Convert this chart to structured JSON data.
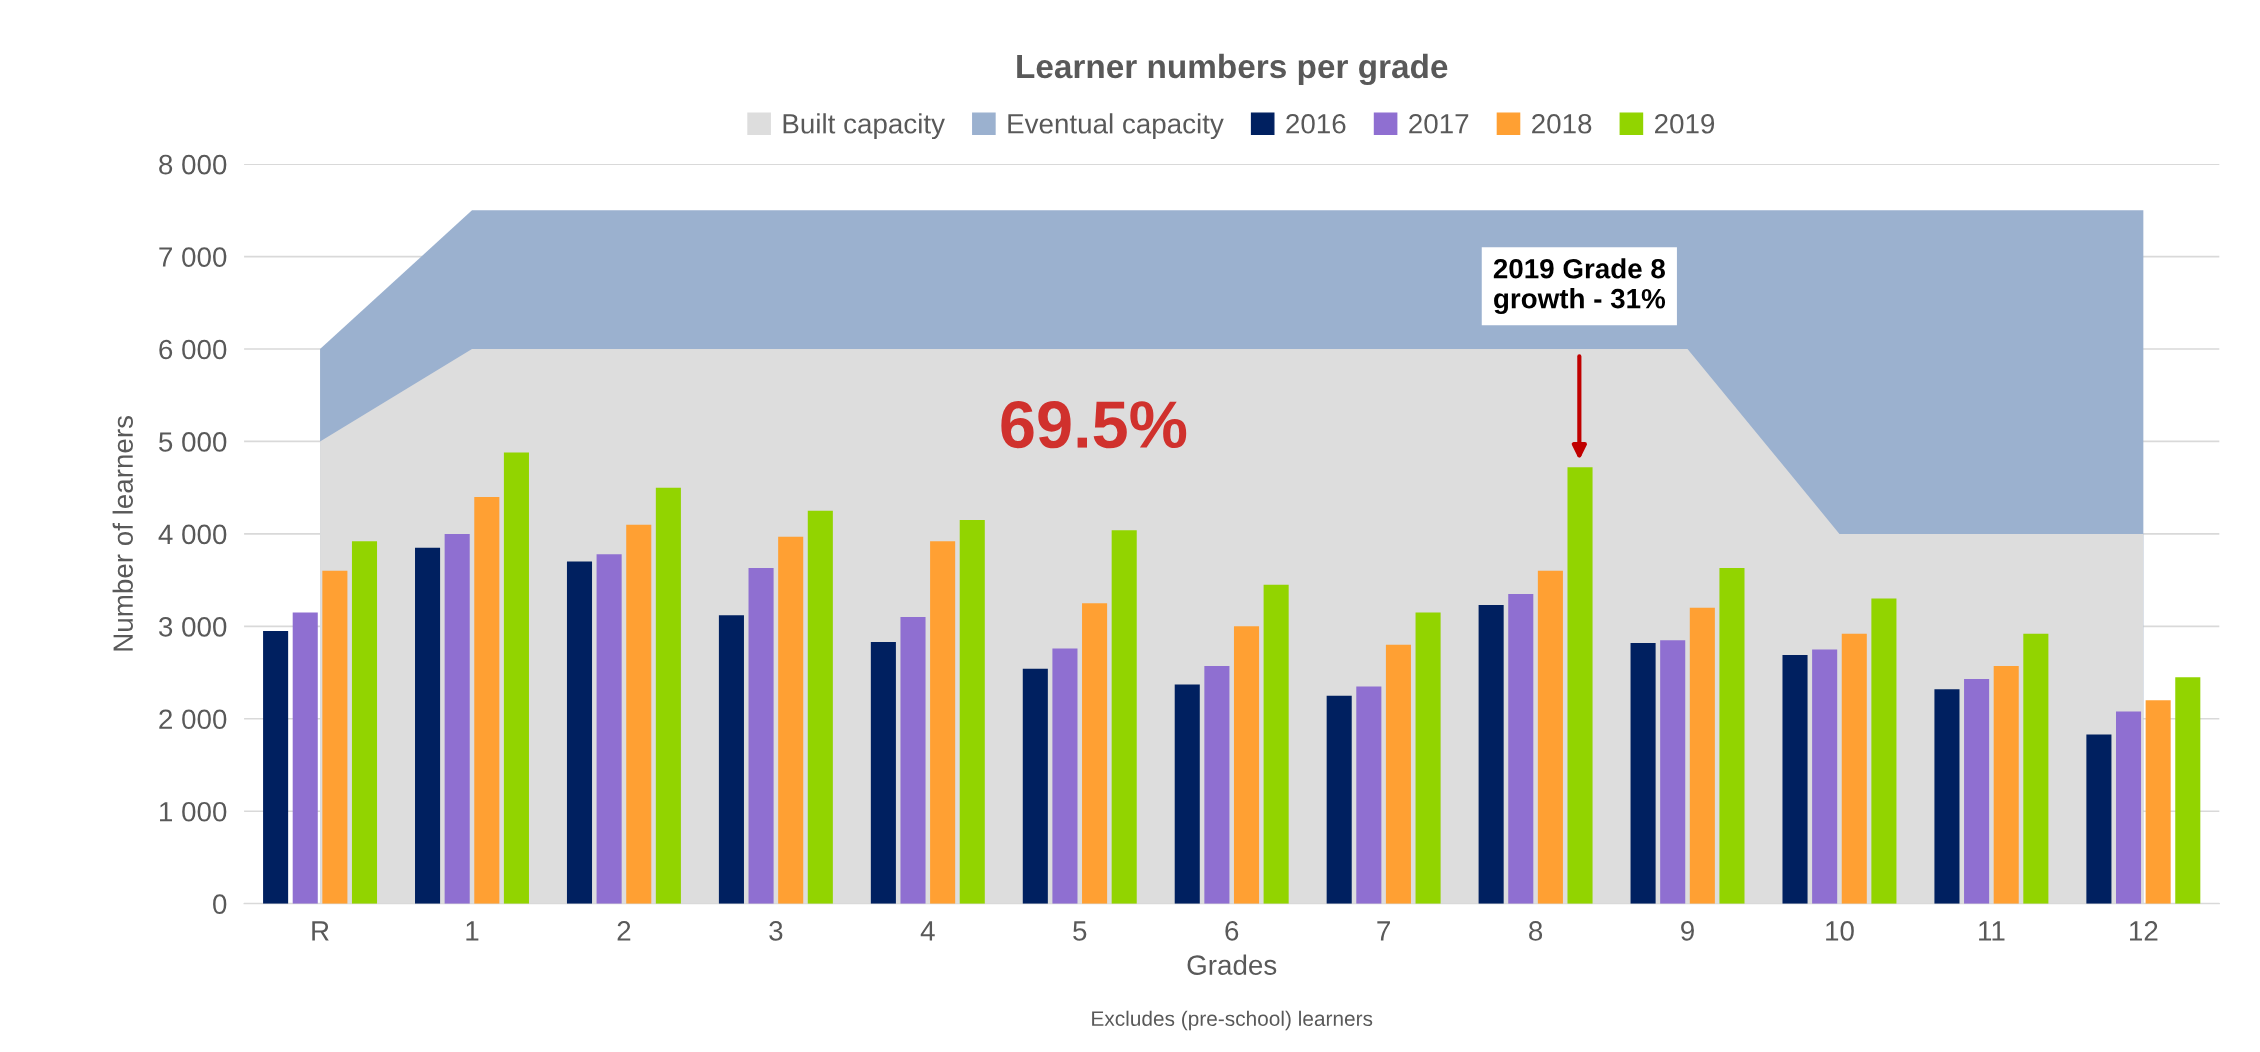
{
  "chart_data": {
    "type": "bar",
    "title": "Learner numbers per grade",
    "xlabel": "Grades",
    "ylabel": "Number of learners",
    "categories": [
      "R",
      "1",
      "2",
      "3",
      "4",
      "5",
      "6",
      "7",
      "8",
      "9",
      "10",
      "11",
      "12"
    ],
    "series": [
      {
        "name": "Built capacity",
        "type": "area",
        "color": "#dddddd",
        "values": [
          5000,
          6000,
          6000,
          6000,
          6000,
          6000,
          6000,
          6000,
          6000,
          6000,
          4000,
          4000,
          4000
        ]
      },
      {
        "name": "Eventual capacity",
        "type": "area",
        "color": "#9bb1cf",
        "values": [
          6000,
          7500,
          7500,
          7500,
          7500,
          7500,
          7500,
          7500,
          7500,
          7500,
          7500,
          7500,
          7500
        ]
      },
      {
        "name": "2016",
        "color": "#002060",
        "values": [
          2950,
          3850,
          3700,
          3120,
          2830,
          2540,
          2370,
          2250,
          3230,
          2820,
          2690,
          2320,
          1830
        ]
      },
      {
        "name": "2017",
        "color": "#8f6fd1",
        "values": [
          3150,
          4000,
          3780,
          3630,
          3100,
          2760,
          2570,
          2350,
          3350,
          2850,
          2750,
          2430,
          2080
        ]
      },
      {
        "name": "2018",
        "color": "#ffa033",
        "values": [
          3600,
          4400,
          4100,
          3970,
          3920,
          3250,
          3000,
          2800,
          3600,
          3200,
          2920,
          2570,
          2200
        ]
      },
      {
        "name": "2019",
        "color": "#92d400",
        "values": [
          3920,
          4880,
          4500,
          4250,
          4150,
          4040,
          3450,
          3150,
          4720,
          3630,
          3300,
          2920,
          2450
        ]
      }
    ],
    "ylim": [
      0,
      8000
    ],
    "yticks": [
      0,
      {
        "value": 1000,
        "label": "1 000"
      },
      {
        "value": 2000,
        "label": "2 000"
      },
      {
        "value": 3000,
        "label": "3 000"
      },
      {
        "value": 4000,
        "label": "4 000"
      },
      {
        "value": 5000,
        "label": "5 000"
      },
      {
        "value": 6000,
        "label": "6 000"
      },
      {
        "value": 7000,
        "label": "7 000"
      },
      {
        "value": 8000,
        "label": "8 000"
      }
    ],
    "grid": "y",
    "legend": "top",
    "annotations": [
      "69.5%",
      "2019 Grade 8\ngrowth - 31%",
      "Excludes (pre-school) learners"
    ]
  }
}
